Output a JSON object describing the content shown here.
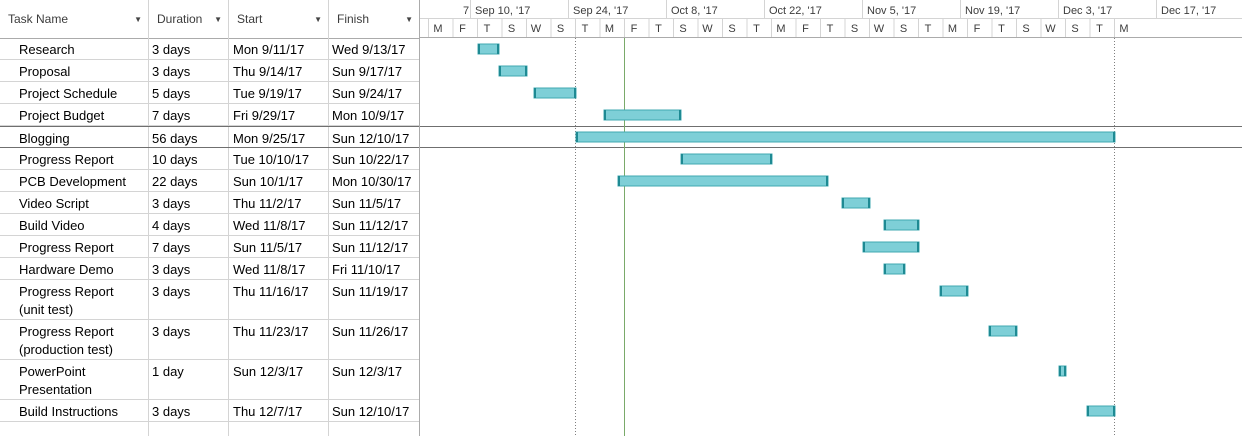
{
  "columns": {
    "name": "Task Name",
    "duration": "Duration",
    "start": "Start",
    "finish": "Finish"
  },
  "tasks": [
    {
      "name": [
        "Research"
      ],
      "duration": "3 days",
      "start": "Mon 9/11/17",
      "finish": "Wed 9/13/17"
    },
    {
      "name": [
        "Proposal"
      ],
      "duration": "3 days",
      "start": "Thu 9/14/17",
      "finish": "Sun 9/17/17"
    },
    {
      "name": [
        "Project Schedule"
      ],
      "duration": "5 days",
      "start": "Tue 9/19/17",
      "finish": "Sun 9/24/17"
    },
    {
      "name": [
        "Project Budget"
      ],
      "duration": "7 days",
      "start": "Fri 9/29/17",
      "finish": "Mon 10/9/17"
    },
    {
      "name": [
        "Blogging"
      ],
      "duration": "56 days",
      "start": "Mon 9/25/17",
      "finish": "Sun 12/10/17"
    },
    {
      "name": [
        "Progress Report"
      ],
      "duration": "10 days",
      "start": "Tue 10/10/17",
      "finish": "Sun 10/22/17"
    },
    {
      "name": [
        "PCB Development"
      ],
      "duration": "22 days",
      "start": "Sun 10/1/17",
      "finish": "Mon 10/30/17"
    },
    {
      "name": [
        "Video Script"
      ],
      "duration": "3 days",
      "start": "Thu 11/2/17",
      "finish": "Sun 11/5/17"
    },
    {
      "name": [
        "Build Video"
      ],
      "duration": "4 days",
      "start": "Wed 11/8/17",
      "finish": "Sun 11/12/17"
    },
    {
      "name": [
        "Progress Report"
      ],
      "duration": "7 days",
      "start": "Sun 11/5/17",
      "finish": "Sun 11/12/17"
    },
    {
      "name": [
        "Hardware Demo"
      ],
      "duration": "3 days",
      "start": "Wed 11/8/17",
      "finish": "Fri 11/10/17"
    },
    {
      "name": [
        "Progress Report",
        "(unit test)"
      ],
      "duration": "3 days",
      "start": "Thu 11/16/17",
      "finish": "Sun 11/19/17"
    },
    {
      "name": [
        "Progress Report",
        "(production test)"
      ],
      "duration": "3 days",
      "start": "Thu 11/23/17",
      "finish": "Sun 11/26/17"
    },
    {
      "name": [
        "PowerPoint",
        "Presentation"
      ],
      "duration": "1 day",
      "start": "Sun 12/3/17",
      "finish": "Sun 12/3/17"
    },
    {
      "name": [
        "Build Instructions"
      ],
      "duration": "3 days",
      "start": "Thu 12/7/17",
      "finish": "Sun 12/10/17"
    }
  ],
  "timescale": {
    "top_labels": [
      "7",
      "Sep 10, '17",
      "Sep 24, '17",
      "Oct 8, '17",
      "Oct 22, '17",
      "Nov 5, '17",
      "Nov 19, '17",
      "Dec 3, '17",
      "Dec 17, '17"
    ],
    "bottom_labels": [
      "M",
      "F",
      "T",
      "S",
      "W",
      "S",
      "T",
      "M",
      "F",
      "T",
      "S",
      "W",
      "S",
      "T",
      "M",
      "F",
      "T",
      "S",
      "W",
      "S",
      "T",
      "M",
      "F",
      "T",
      "S",
      "W",
      "S",
      "T",
      "M"
    ]
  },
  "colors": {
    "bar_fill": "#7ecfd7",
    "bar_stroke": "#40a8b1",
    "bar_end": "#1e8a93",
    "today_line": "#7aaa6a",
    "dotted_line": "#7f7f7f",
    "grid": "#d4d4d4",
    "header_text": "#3c3c3c"
  }
}
